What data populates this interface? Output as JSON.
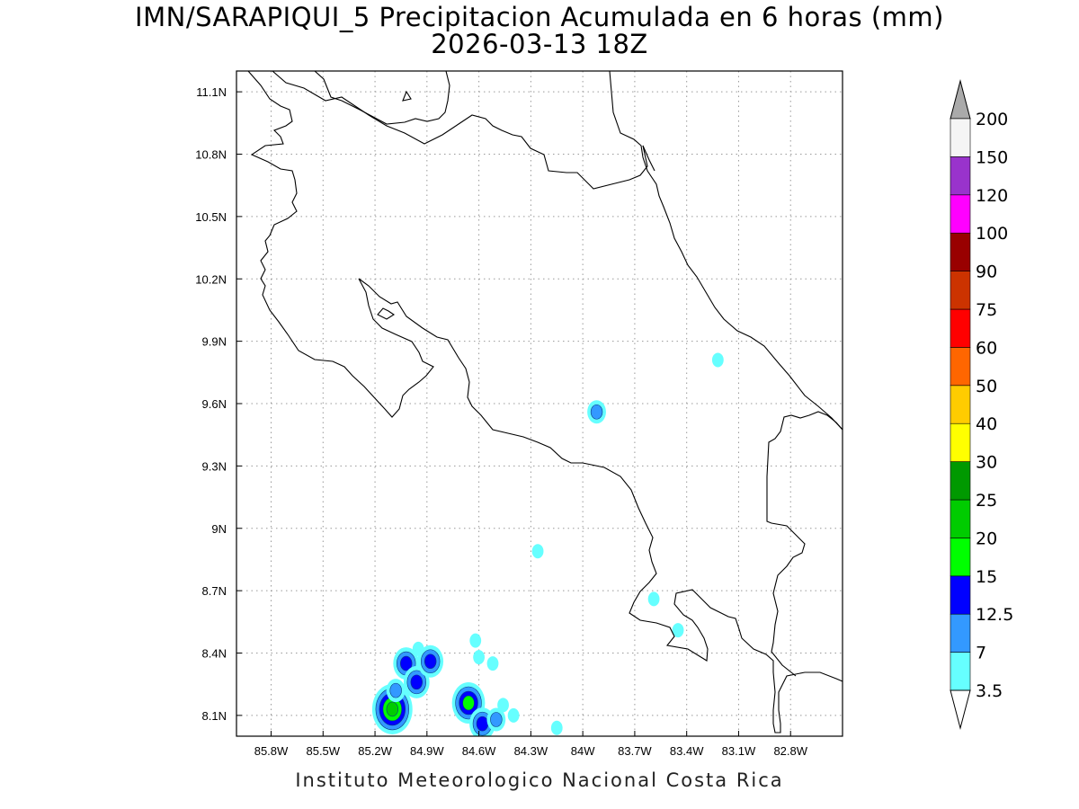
{
  "title": {
    "line1": "IMN/SARAPIQUI_5 Precipitacion Acumulada en 6 horas (mm)",
    "line2": "2026-03-13 18Z"
  },
  "footer": "Instituto Meteorologico Nacional Costa Rica",
  "map": {
    "lon_range": [
      -86.0,
      -82.5
    ],
    "lat_range": [
      8.0,
      11.2
    ],
    "lon_ticks": [
      "85.8W",
      "85.5W",
      "85.2W",
      "84.9W",
      "84.6W",
      "84.3W",
      "84W",
      "83.7W",
      "83.4W",
      "83.1W",
      "82.8W"
    ],
    "lon_values": [
      -85.8,
      -85.5,
      -85.2,
      -84.9,
      -84.6,
      -84.3,
      -84.0,
      -83.7,
      -83.4,
      -83.1,
      -82.8
    ],
    "lat_ticks": [
      "11.1N",
      "10.8N",
      "10.5N",
      "10.2N",
      "9.9N",
      "9.6N",
      "9.3N",
      "9N",
      "8.7N",
      "8.4N",
      "8.1N"
    ],
    "lat_values": [
      11.1,
      10.8,
      10.5,
      10.2,
      9.9,
      9.6,
      9.3,
      9.0,
      8.7,
      8.4,
      8.1
    ],
    "grid": true,
    "colorbar": {
      "labels": [
        "3.5",
        "7",
        "12.5",
        "15",
        "20",
        "25",
        "30",
        "40",
        "50",
        "60",
        "75",
        "90",
        "100",
        "120",
        "150",
        "200"
      ],
      "colors": [
        "#66ffff",
        "#3399ff",
        "#0000ff",
        "#00ff00",
        "#00cc00",
        "#009900",
        "#ffff00",
        "#ffcc00",
        "#ff6600",
        "#ff0000",
        "#cc3300",
        "#990000",
        "#ff00ff",
        "#9933cc",
        "#f5f5f5"
      ],
      "top_arrow_color": "#aaaaaa",
      "bottom_arrow_color": "#ffffff"
    },
    "precip_cells": [
      {
        "lon": -85.1,
        "lat": 8.13,
        "level": 4
      },
      {
        "lon": -85.08,
        "lat": 8.22,
        "level": 1
      },
      {
        "lon": -85.02,
        "lat": 8.35,
        "level": 2
      },
      {
        "lon": -84.96,
        "lat": 8.26,
        "level": 2
      },
      {
        "lon": -84.88,
        "lat": 8.36,
        "level": 2
      },
      {
        "lon": -84.95,
        "lat": 8.42,
        "level": 0
      },
      {
        "lon": -84.66,
        "lat": 8.16,
        "level": 3
      },
      {
        "lon": -84.58,
        "lat": 8.06,
        "level": 2
      },
      {
        "lon": -84.5,
        "lat": 8.08,
        "level": 1
      },
      {
        "lon": -84.46,
        "lat": 8.15,
        "level": 0
      },
      {
        "lon": -84.4,
        "lat": 8.1,
        "level": 0
      },
      {
        "lon": -84.62,
        "lat": 8.46,
        "level": 0
      },
      {
        "lon": -84.6,
        "lat": 8.38,
        "level": 0
      },
      {
        "lon": -84.52,
        "lat": 8.35,
        "level": 0
      },
      {
        "lon": -84.15,
        "lat": 8.04,
        "level": 0
      },
      {
        "lon": -83.92,
        "lat": 9.56,
        "level": 1
      },
      {
        "lon": -83.22,
        "lat": 9.81,
        "level": 0
      },
      {
        "lon": -84.26,
        "lat": 8.89,
        "level": 0
      },
      {
        "lon": -83.59,
        "lat": 8.66,
        "level": 0
      },
      {
        "lon": -83.45,
        "lat": 8.51,
        "level": 0
      }
    ]
  }
}
